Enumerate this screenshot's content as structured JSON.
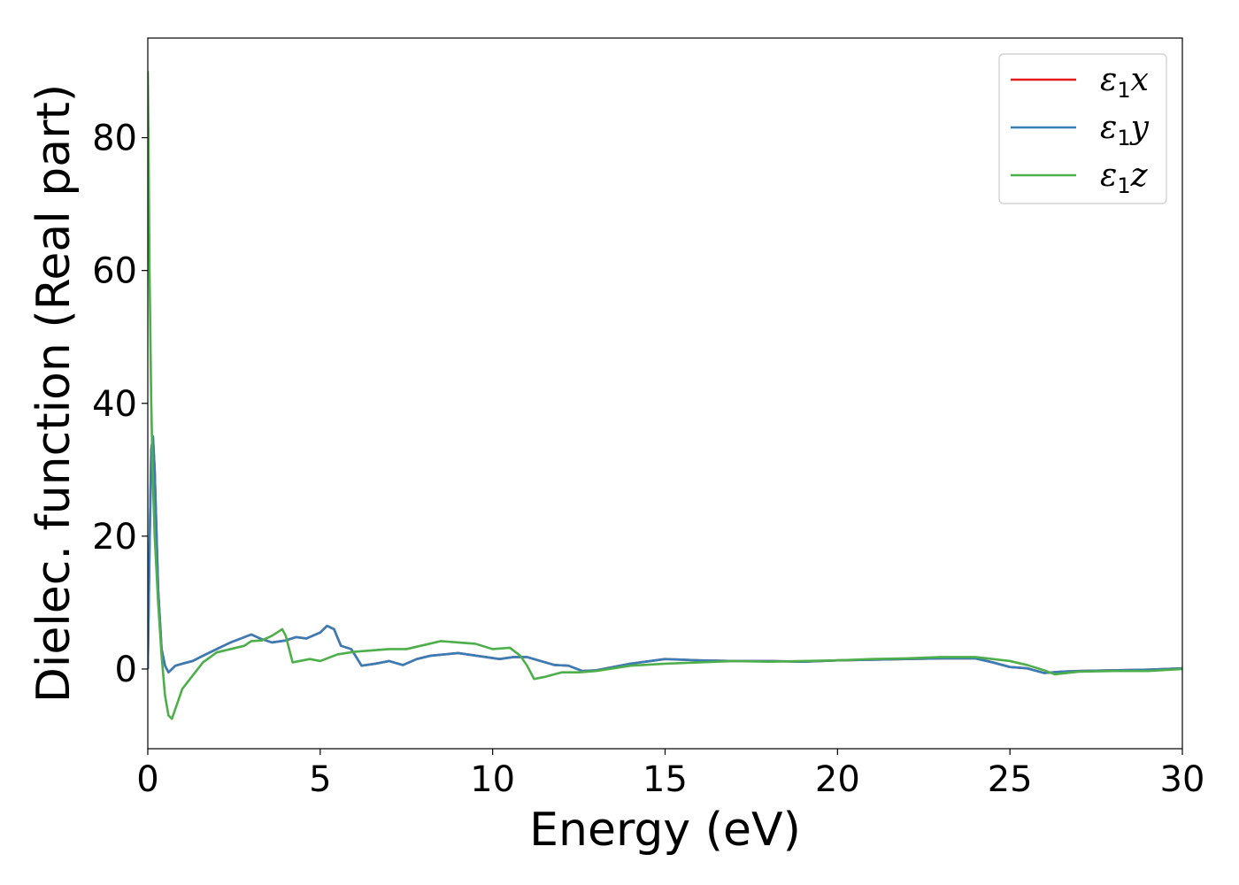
{
  "chart_data": {
    "type": "line",
    "xlabel": "Energy (eV)",
    "ylabel": "Dielec. function (Real part)",
    "xlim": [
      0,
      30
    ],
    "ylim": [
      -12,
      95
    ],
    "xticks": [
      0,
      5,
      10,
      15,
      20,
      25,
      30
    ],
    "yticks": [
      0,
      20,
      40,
      60,
      80
    ],
    "grid": false,
    "legend_position": "upper right",
    "series": [
      {
        "name": "ε1x",
        "color": "#e41a1c",
        "x": [
          0,
          0.05,
          0.1,
          0.15,
          0.2,
          0.3,
          0.4,
          0.5,
          0.6,
          0.8,
          1.0,
          1.3,
          1.6,
          2.0,
          2.4,
          2.8,
          3.0,
          3.3,
          3.6,
          4.0,
          4.3,
          4.6,
          5.0,
          5.2,
          5.4,
          5.6,
          5.9,
          6.2,
          6.6,
          7.0,
          7.4,
          7.8,
          8.2,
          8.6,
          9.0,
          9.4,
          9.8,
          10.2,
          10.6,
          11.0,
          11.4,
          11.8,
          12.2,
          12.6,
          13.0,
          14.0,
          15.0,
          16.0,
          17.0,
          18.0,
          19.0,
          20.0,
          21.0,
          22.0,
          23.0,
          24.0,
          24.5,
          25.0,
          25.5,
          26.0,
          26.5,
          27.0,
          28.0,
          29.0,
          30.0
        ],
        "y": [
          0,
          18,
          33,
          35,
          30,
          12,
          3,
          0.5,
          -0.5,
          0.5,
          0.8,
          1.2,
          2.0,
          3.0,
          4.0,
          4.8,
          5.2,
          4.5,
          4.0,
          4.3,
          4.8,
          4.6,
          5.5,
          6.5,
          6.0,
          3.5,
          3.0,
          0.5,
          0.8,
          1.2,
          0.6,
          1.5,
          2.0,
          2.2,
          2.4,
          2.1,
          1.8,
          1.5,
          1.8,
          1.8,
          1.2,
          0.6,
          0.5,
          -0.3,
          -0.2,
          0.8,
          1.5,
          1.3,
          1.2,
          1.2,
          1.1,
          1.3,
          1.4,
          1.5,
          1.6,
          1.6,
          1.0,
          0.3,
          0.1,
          -0.6,
          -0.4,
          -0.3,
          -0.2,
          -0.1,
          0.1
        ]
      },
      {
        "name": "ε1y",
        "color": "#377eb8",
        "x": [
          0,
          0.05,
          0.1,
          0.15,
          0.2,
          0.3,
          0.4,
          0.5,
          0.6,
          0.8,
          1.0,
          1.3,
          1.6,
          2.0,
          2.4,
          2.8,
          3.0,
          3.3,
          3.6,
          4.0,
          4.3,
          4.6,
          5.0,
          5.2,
          5.4,
          5.6,
          5.9,
          6.2,
          6.6,
          7.0,
          7.4,
          7.8,
          8.2,
          8.6,
          9.0,
          9.4,
          9.8,
          10.2,
          10.6,
          11.0,
          11.4,
          11.8,
          12.2,
          12.6,
          13.0,
          14.0,
          15.0,
          16.0,
          17.0,
          18.0,
          19.0,
          20.0,
          21.0,
          22.0,
          23.0,
          24.0,
          24.5,
          25.0,
          25.5,
          26.0,
          26.5,
          27.0,
          28.0,
          29.0,
          30.0
        ],
        "y": [
          0,
          18,
          33,
          35,
          30,
          12,
          3,
          0.5,
          -0.5,
          0.5,
          0.8,
          1.2,
          2.0,
          3.0,
          4.0,
          4.8,
          5.2,
          4.5,
          4.0,
          4.3,
          4.8,
          4.6,
          5.5,
          6.5,
          6.0,
          3.5,
          3.0,
          0.5,
          0.8,
          1.2,
          0.6,
          1.5,
          2.0,
          2.2,
          2.4,
          2.1,
          1.8,
          1.5,
          1.8,
          1.8,
          1.2,
          0.6,
          0.5,
          -0.3,
          -0.2,
          0.8,
          1.5,
          1.3,
          1.2,
          1.2,
          1.1,
          1.3,
          1.4,
          1.5,
          1.6,
          1.6,
          1.0,
          0.3,
          0.1,
          -0.6,
          -0.4,
          -0.3,
          -0.2,
          -0.1,
          0.1
        ]
      },
      {
        "name": "ε1z",
        "color": "#4daf4a",
        "x": [
          0,
          0.02,
          0.05,
          0.1,
          0.15,
          0.2,
          0.3,
          0.4,
          0.5,
          0.6,
          0.7,
          0.8,
          1.0,
          1.3,
          1.6,
          2.0,
          2.4,
          2.8,
          3.0,
          3.3,
          3.6,
          3.9,
          4.0,
          4.2,
          4.4,
          4.7,
          5.0,
          5.5,
          6.0,
          6.5,
          7.0,
          7.5,
          8.0,
          8.5,
          9.0,
          9.5,
          10.0,
          10.5,
          10.8,
          11.0,
          11.2,
          11.5,
          12.0,
          12.5,
          13.0,
          14.0,
          15.0,
          16.0,
          17.0,
          18.0,
          19.0,
          20.0,
          21.0,
          22.0,
          23.0,
          24.0,
          24.5,
          25.0,
          25.5,
          26.0,
          26.3,
          27.0,
          28.0,
          29.0,
          30.0
        ],
        "y": [
          90,
          80,
          60,
          40,
          28,
          20,
          10,
          2,
          -4,
          -7,
          -7.5,
          -6,
          -3,
          -1,
          1,
          2.5,
          3.0,
          3.5,
          4.2,
          4.3,
          5.0,
          6.0,
          5.0,
          1.0,
          1.2,
          1.5,
          1.2,
          2.2,
          2.6,
          2.8,
          3.0,
          3.0,
          3.6,
          4.2,
          4.0,
          3.8,
          3.0,
          3.2,
          2.0,
          0.5,
          -1.5,
          -1.2,
          -0.5,
          -0.5,
          -0.3,
          0.5,
          0.8,
          1.0,
          1.2,
          1.1,
          1.2,
          1.3,
          1.5,
          1.6,
          1.8,
          1.8,
          1.5,
          1.2,
          0.6,
          -0.2,
          -0.8,
          -0.4,
          -0.3,
          -0.3,
          0.0
        ]
      }
    ]
  }
}
